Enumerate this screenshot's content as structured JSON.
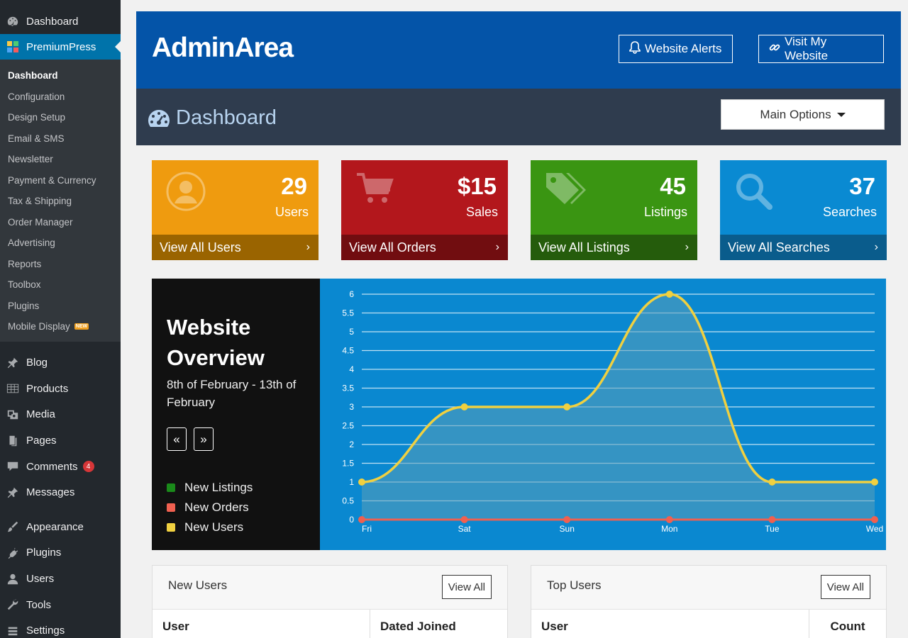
{
  "sidebar": {
    "dashboard": "Dashboard",
    "premiumpress": "PremiumPress",
    "submenu": [
      "Dashboard",
      "Configuration",
      "Design Setup",
      "Email & SMS",
      "Newsletter",
      "Payment & Currency",
      "Tax & Shipping",
      "Order Manager",
      "Advertising",
      "Reports",
      "Toolbox",
      "Plugins",
      "Mobile Display"
    ],
    "new_badge": "NEW",
    "group1": [
      "Blog",
      "Products",
      "Media",
      "Pages",
      "Comments",
      "Messages"
    ],
    "comments_count": "4",
    "group2": [
      "Appearance",
      "Plugins",
      "Users",
      "Tools",
      "Settings"
    ]
  },
  "header": {
    "brand": "AdminArea",
    "alerts": "Website Alerts",
    "visit": "Visit My Website",
    "page_title": "Dashboard",
    "main_options": "Main Options"
  },
  "cards": [
    {
      "value": "29",
      "label": "Users",
      "link": "View All Users",
      "color": "#ef9b0f"
    },
    {
      "value": "$15",
      "label": "Sales",
      "link": "View All Orders",
      "color": "#b3171c"
    },
    {
      "value": "45",
      "label": "Listings",
      "link": "View All Listings",
      "color": "#3a9512"
    },
    {
      "value": "37",
      "label": "Searches",
      "link": "View All Searches",
      "color": "#0a8ad2"
    }
  ],
  "overview": {
    "title": "Website Overview",
    "dates": "8th of February - 13th of February",
    "prev": "«",
    "next": "»",
    "legend": [
      {
        "name": "New Listings",
        "color": "#1a8a1a"
      },
      {
        "name": "New Orders",
        "color": "#f06050"
      },
      {
        "name": "New Users",
        "color": "#f0d040"
      }
    ]
  },
  "chart_data": {
    "type": "line",
    "categories": [
      "Fri",
      "Sat",
      "Sun",
      "Mon",
      "Tue",
      "Wed"
    ],
    "series": [
      {
        "name": "New Users",
        "values": [
          1,
          3,
          3,
          6,
          1,
          1
        ],
        "color": "#f0d040"
      },
      {
        "name": "New Orders",
        "values": [
          0,
          0,
          0,
          0,
          0,
          0
        ],
        "color": "#f06050"
      }
    ],
    "yticks": [
      "0",
      "0.5",
      "1",
      "1.5",
      "2",
      "2.5",
      "3",
      "3.5",
      "4",
      "4.5",
      "5",
      "5.5",
      "6"
    ],
    "ylim": [
      0,
      6
    ],
    "grid": true
  },
  "panels": {
    "new_users": {
      "title": "New Users",
      "button": "View All",
      "col1": "User",
      "col2": "Dated Joined"
    },
    "top_users": {
      "title": "Top Users",
      "button": "View All",
      "col1": "User",
      "col2": "Count"
    }
  }
}
